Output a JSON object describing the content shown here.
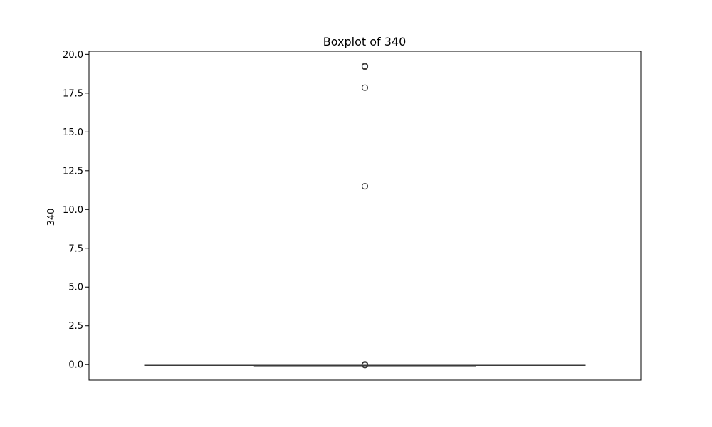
{
  "chart_data": {
    "type": "boxplot",
    "title": "Boxplot of 340",
    "xlabel": "",
    "ylabel": "340",
    "ylim": [
      -1.0,
      20.2
    ],
    "yticks": [
      0.0,
      2.5,
      5.0,
      7.5,
      10.0,
      12.5,
      15.0,
      17.5,
      20.0
    ],
    "ytick_labels": [
      "0.0",
      "2.5",
      "5.0",
      "7.5",
      "10.0",
      "12.5",
      "15.0",
      "17.5",
      "20.0"
    ],
    "categories": [
      ""
    ],
    "box": {
      "whisker_low": -0.05,
      "q1": -0.05,
      "median": -0.05,
      "q3": -0.05,
      "whisker_high": -0.05
    },
    "outliers": [
      19.25,
      19.2,
      17.85,
      11.5,
      0.02,
      0.0,
      -0.03,
      -0.02
    ],
    "grid": false,
    "colors": {
      "box": "#3a3a3a",
      "outlier_edge": "#3a3a3a",
      "frame": "#000000"
    }
  }
}
